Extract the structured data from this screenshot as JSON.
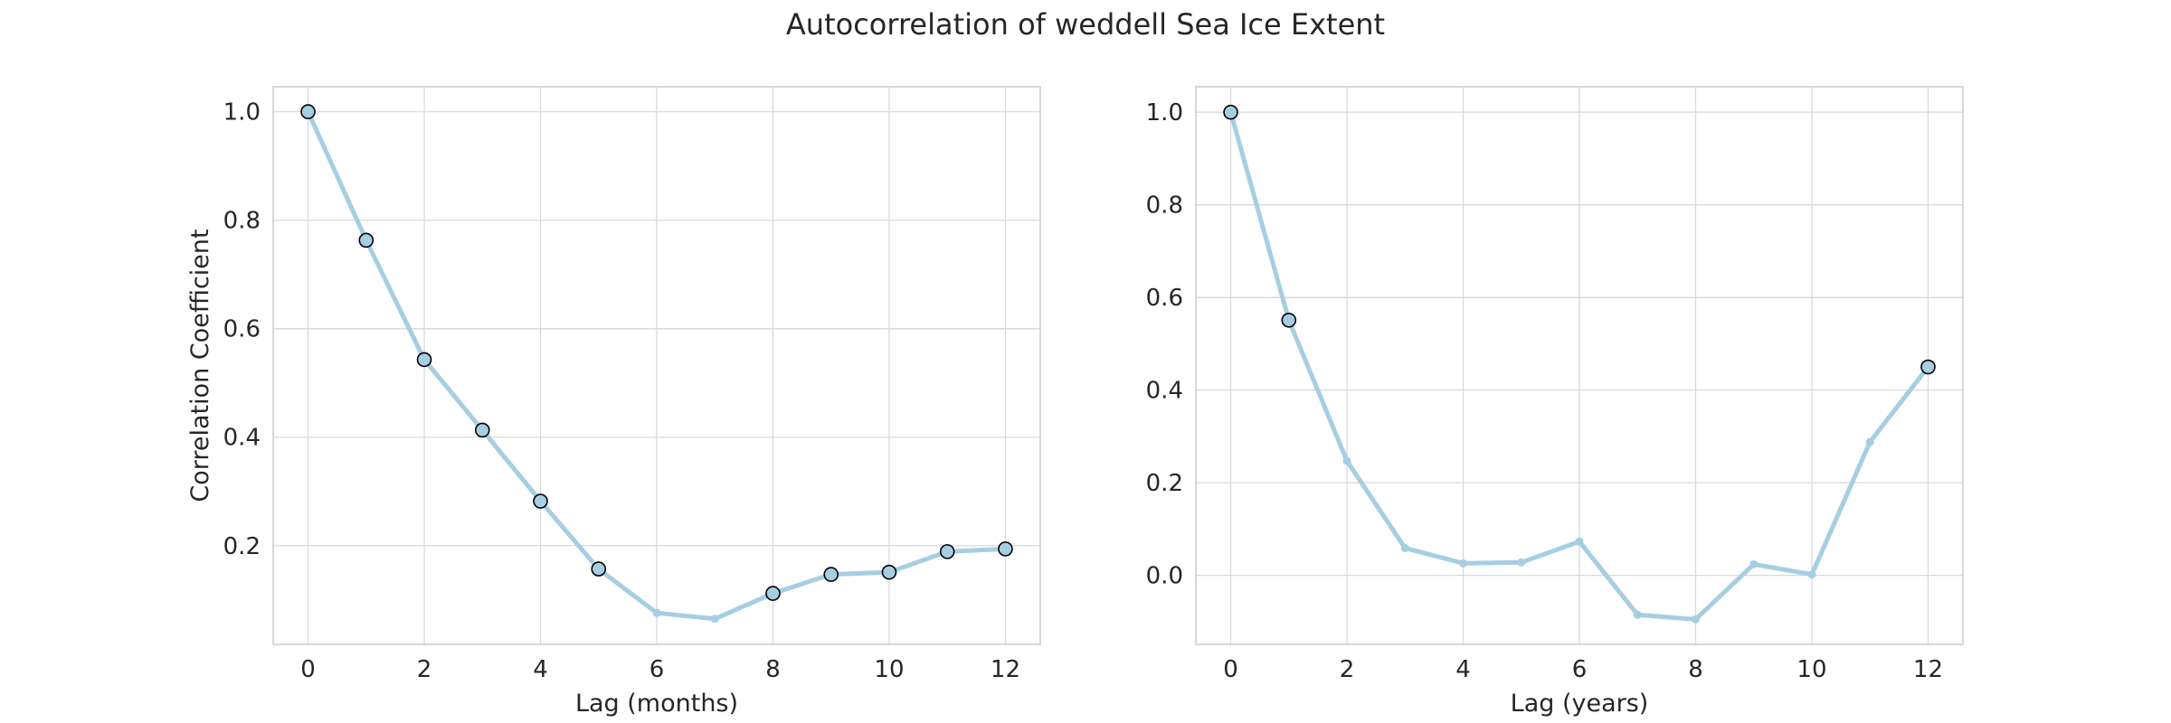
{
  "figure_title": "Autocorrelation of weddell Sea Ice Extent",
  "colors": {
    "line": "#a6cee3",
    "marker_edge": "#000000",
    "grid": "#d9d9d9",
    "spine": "#cccccc"
  },
  "chart_data": [
    {
      "type": "line",
      "xlabel": "Lag (months)",
      "ylabel": "Correlation Coefficient",
      "x": [
        0,
        1,
        2,
        3,
        4,
        5,
        6,
        7,
        8,
        9,
        10,
        11,
        12
      ],
      "values": [
        1.0,
        0.763,
        0.543,
        0.413,
        0.282,
        0.157,
        0.076,
        0.065,
        0.112,
        0.147,
        0.151,
        0.189,
        0.194
      ],
      "highlighted": [
        true,
        true,
        true,
        true,
        true,
        true,
        false,
        false,
        true,
        true,
        true,
        true,
        true
      ],
      "xticks": [
        0,
        2,
        4,
        6,
        8,
        10,
        12
      ],
      "yticks": [
        0.2,
        0.4,
        0.6,
        0.8,
        1.0
      ],
      "xlim": [
        -0.6,
        12.6
      ],
      "ylim": [
        0.018,
        1.046
      ],
      "grid": true
    },
    {
      "type": "line",
      "xlabel": "Lag (years)",
      "ylabel": "",
      "x": [
        0,
        1,
        2,
        3,
        4,
        5,
        6,
        7,
        8,
        9,
        10,
        11,
        12
      ],
      "values": [
        1.0,
        0.551,
        0.247,
        0.059,
        0.026,
        0.028,
        0.073,
        -0.085,
        -0.095,
        0.024,
        0.002,
        0.288,
        0.45
      ],
      "highlighted": [
        true,
        true,
        false,
        false,
        false,
        false,
        false,
        false,
        false,
        false,
        false,
        false,
        true
      ],
      "xticks": [
        0,
        2,
        4,
        6,
        8,
        10,
        12
      ],
      "yticks": [
        0.0,
        0.2,
        0.4,
        0.6,
        0.8,
        1.0
      ],
      "xlim": [
        -0.6,
        12.6
      ],
      "ylim": [
        -0.149,
        1.055
      ],
      "grid": true
    }
  ]
}
